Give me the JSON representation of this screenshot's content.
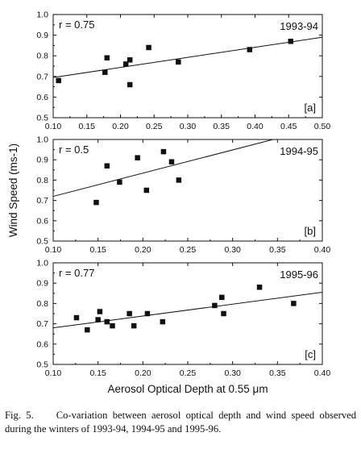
{
  "figure": {
    "y_axis_label": "Wind Speed (ms-1)",
    "x_axis_label": "Aerosol Optical Depth at 0.55 μm"
  },
  "caption": {
    "label": "Fig. 5.",
    "text": "Co-variation between aerosol optical depth and wind speed observed during the winters of 1993-94, 1994-95 and 1995-96."
  },
  "chart_data": [
    {
      "type": "scatter",
      "panel_tag": "[a]",
      "period": "1993-94",
      "r_label": "r = 0.75",
      "xlim": [
        0.1,
        0.5
      ],
      "ylim": [
        0.5,
        1.0
      ],
      "x_ticks": [
        "0.10",
        "0.15",
        "0.20",
        "0.25",
        "0.30",
        "0.35",
        "0.40",
        "0.45",
        "0.50"
      ],
      "y_ticks": [
        "0.5",
        "0.6",
        "0.7",
        "0.8",
        "0.9",
        "1.0"
      ],
      "points": [
        {
          "x": 0.108,
          "y": 0.68
        },
        {
          "x": 0.177,
          "y": 0.72
        },
        {
          "x": 0.18,
          "y": 0.79
        },
        {
          "x": 0.208,
          "y": 0.76
        },
        {
          "x": 0.214,
          "y": 0.78
        },
        {
          "x": 0.214,
          "y": 0.66
        },
        {
          "x": 0.242,
          "y": 0.84
        },
        {
          "x": 0.286,
          "y": 0.77
        },
        {
          "x": 0.392,
          "y": 0.83
        },
        {
          "x": 0.453,
          "y": 0.87
        }
      ],
      "fit_line": [
        {
          "x": 0.1,
          "y": 0.695
        },
        {
          "x": 0.5,
          "y": 0.89
        }
      ]
    },
    {
      "type": "scatter",
      "panel_tag": "[b]",
      "period": "1994-95",
      "r_label": "r = 0.5",
      "xlim": [
        0.1,
        0.4
      ],
      "ylim": [
        0.5,
        1.0
      ],
      "x_ticks": [
        "0.10",
        "0.15",
        "0.20",
        "0.25",
        "0.30",
        "0.35",
        "0.40"
      ],
      "y_ticks": [
        "0.5",
        "0.6",
        "0.7",
        "0.8",
        "0.9",
        "1.0"
      ],
      "points": [
        {
          "x": 0.148,
          "y": 0.69
        },
        {
          "x": 0.16,
          "y": 0.87
        },
        {
          "x": 0.174,
          "y": 0.79
        },
        {
          "x": 0.194,
          "y": 0.91
        },
        {
          "x": 0.204,
          "y": 0.75
        },
        {
          "x": 0.223,
          "y": 0.94
        },
        {
          "x": 0.232,
          "y": 0.89
        },
        {
          "x": 0.24,
          "y": 0.8
        }
      ],
      "fit_line": [
        {
          "x": 0.1,
          "y": 0.72
        },
        {
          "x": 0.345,
          "y": 1.0
        }
      ]
    },
    {
      "type": "scatter",
      "panel_tag": "[c]",
      "period": "1995-96",
      "r_label": "r = 0.77",
      "xlim": [
        0.1,
        0.4
      ],
      "ylim": [
        0.5,
        1.0
      ],
      "x_ticks": [
        "0.10",
        "0.15",
        "0.20",
        "0.25",
        "0.30",
        "0.35",
        "0.40"
      ],
      "y_ticks": [
        "0.5",
        "0.6",
        "0.7",
        "0.8",
        "0.9",
        "1.0"
      ],
      "points": [
        {
          "x": 0.126,
          "y": 0.73
        },
        {
          "x": 0.138,
          "y": 0.67
        },
        {
          "x": 0.15,
          "y": 0.72
        },
        {
          "x": 0.152,
          "y": 0.76
        },
        {
          "x": 0.16,
          "y": 0.71
        },
        {
          "x": 0.166,
          "y": 0.69
        },
        {
          "x": 0.185,
          "y": 0.75
        },
        {
          "x": 0.19,
          "y": 0.69
        },
        {
          "x": 0.205,
          "y": 0.75
        },
        {
          "x": 0.222,
          "y": 0.71
        },
        {
          "x": 0.28,
          "y": 0.79
        },
        {
          "x": 0.288,
          "y": 0.83
        },
        {
          "x": 0.29,
          "y": 0.75
        },
        {
          "x": 0.33,
          "y": 0.88
        },
        {
          "x": 0.368,
          "y": 0.8
        }
      ],
      "fit_line": [
        {
          "x": 0.1,
          "y": 0.68
        },
        {
          "x": 0.4,
          "y": 0.855
        }
      ]
    }
  ]
}
